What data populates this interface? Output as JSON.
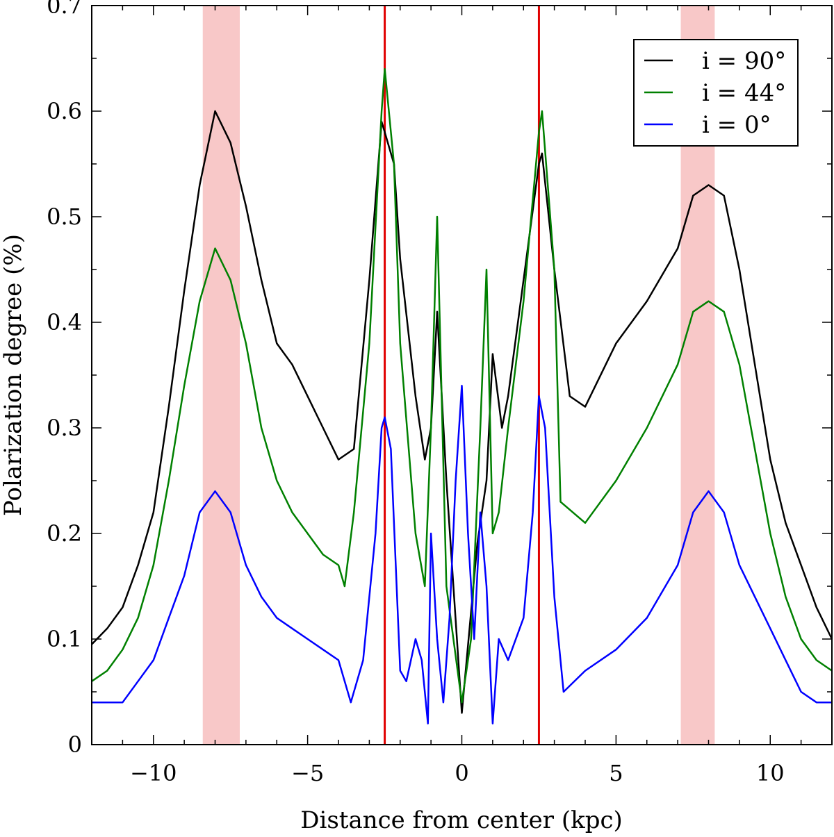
{
  "chart_data": {
    "type": "line",
    "title": "",
    "xlabel": "Distance from center (kpc)",
    "ylabel": "Polarization degree (%)",
    "xlim": [
      -12,
      12
    ],
    "ylim": [
      0,
      0.7
    ],
    "grid": false,
    "legend_position": "top-right",
    "x_ticks": [
      -10,
      -5,
      0,
      5,
      10
    ],
    "x_tick_labels": [
      "−10",
      "−5",
      "0",
      "5",
      "10"
    ],
    "y_ticks": [
      0,
      0.1,
      0.2,
      0.3,
      0.4,
      0.5,
      0.6,
      0.7
    ],
    "y_tick_labels": [
      "0",
      "0.1",
      "0.2",
      "0.3",
      "0.4",
      "0.5",
      "0.6",
      "0.7"
    ],
    "shaded_bands": [
      {
        "x_range": [
          -8.4,
          -7.2
        ],
        "color": "#f8c8c8"
      },
      {
        "x_range": [
          7.1,
          8.2
        ],
        "color": "#f8c8c8"
      }
    ],
    "vertical_lines": [
      {
        "x": -2.5,
        "color": "#e00000"
      },
      {
        "x": 2.5,
        "color": "#e00000"
      }
    ],
    "series": [
      {
        "name": "i = 90°",
        "color": "#000000",
        "x": [
          -12,
          -11.5,
          -11,
          -10.5,
          -10,
          -9.5,
          -9,
          -8.5,
          -8,
          -7.5,
          -7,
          -6.5,
          -6,
          -5.5,
          -5,
          -4.5,
          -4,
          -3.5,
          -3,
          -2.6,
          -2.5,
          -2.2,
          -2,
          -1.5,
          -1.2,
          -1,
          -0.8,
          -0.5,
          0,
          0.5,
          0.8,
          1,
          1.3,
          1.5,
          2,
          2.5,
          2.6,
          3,
          3.5,
          4,
          5,
          6,
          7,
          7.5,
          8,
          8.5,
          9,
          9.5,
          10,
          10.5,
          11,
          11.5,
          12
        ],
        "y": [
          0.095,
          0.11,
          0.13,
          0.17,
          0.22,
          0.32,
          0.43,
          0.53,
          0.6,
          0.57,
          0.51,
          0.44,
          0.38,
          0.36,
          0.33,
          0.3,
          0.27,
          0.28,
          0.44,
          0.59,
          0.58,
          0.55,
          0.46,
          0.33,
          0.27,
          0.3,
          0.41,
          0.25,
          0.03,
          0.19,
          0.25,
          0.37,
          0.3,
          0.33,
          0.44,
          0.55,
          0.56,
          0.45,
          0.33,
          0.32,
          0.38,
          0.42,
          0.47,
          0.52,
          0.53,
          0.52,
          0.45,
          0.36,
          0.27,
          0.21,
          0.17,
          0.13,
          0.1
        ]
      },
      {
        "name": "i = 44°",
        "color": "#008000",
        "x": [
          -12,
          -11.5,
          -11,
          -10.5,
          -10,
          -9.5,
          -9,
          -8.5,
          -8,
          -7.5,
          -7,
          -6.5,
          -6,
          -5.5,
          -5,
          -4.5,
          -4,
          -3.8,
          -3.5,
          -3,
          -2.6,
          -2.5,
          -2.2,
          -2,
          -1.5,
          -1.2,
          -1,
          -0.8,
          -0.5,
          0,
          0.3,
          0.6,
          0.8,
          1,
          1.2,
          1.5,
          2,
          2.5,
          2.6,
          3,
          3.2,
          4,
          5,
          6,
          7,
          7.5,
          8,
          8.5,
          9,
          9.5,
          10,
          10.5,
          11,
          11.5,
          12
        ],
        "y": [
          0.06,
          0.07,
          0.09,
          0.12,
          0.17,
          0.25,
          0.34,
          0.42,
          0.47,
          0.44,
          0.38,
          0.3,
          0.25,
          0.22,
          0.2,
          0.18,
          0.17,
          0.15,
          0.22,
          0.38,
          0.6,
          0.64,
          0.55,
          0.38,
          0.2,
          0.15,
          0.3,
          0.5,
          0.15,
          0.04,
          0.1,
          0.3,
          0.45,
          0.2,
          0.22,
          0.3,
          0.42,
          0.58,
          0.6,
          0.45,
          0.23,
          0.21,
          0.25,
          0.3,
          0.36,
          0.41,
          0.42,
          0.41,
          0.36,
          0.28,
          0.2,
          0.14,
          0.1,
          0.08,
          0.07
        ]
      },
      {
        "name": "i = 0°",
        "color": "#0000ff",
        "x": [
          -12,
          -11.5,
          -11,
          -10.5,
          -10,
          -9.5,
          -9,
          -8.5,
          -8,
          -7.5,
          -7,
          -6.5,
          -6,
          -5.5,
          -5,
          -4.5,
          -4,
          -3.6,
          -3.2,
          -2.8,
          -2.6,
          -2.5,
          -2.3,
          -2,
          -1.8,
          -1.5,
          -1.3,
          -1.1,
          -1,
          -0.8,
          -0.6,
          -0.4,
          -0.2,
          0,
          0.2,
          0.4,
          0.6,
          0.8,
          1,
          1.2,
          1.5,
          2,
          2.3,
          2.5,
          2.7,
          3,
          3.3,
          4,
          5,
          6,
          7,
          7.5,
          8,
          8.5,
          9,
          9.5,
          10,
          10.5,
          11,
          11.5,
          12
        ],
        "y": [
          0.04,
          0.04,
          0.04,
          0.06,
          0.08,
          0.12,
          0.16,
          0.22,
          0.24,
          0.22,
          0.17,
          0.14,
          0.12,
          0.11,
          0.1,
          0.09,
          0.08,
          0.04,
          0.08,
          0.2,
          0.3,
          0.31,
          0.28,
          0.07,
          0.06,
          0.1,
          0.08,
          0.02,
          0.2,
          0.1,
          0.04,
          0.12,
          0.25,
          0.34,
          0.2,
          0.1,
          0.22,
          0.15,
          0.02,
          0.1,
          0.08,
          0.12,
          0.22,
          0.33,
          0.3,
          0.14,
          0.05,
          0.07,
          0.09,
          0.12,
          0.17,
          0.22,
          0.24,
          0.22,
          0.17,
          0.14,
          0.11,
          0.08,
          0.05,
          0.04,
          0.04
        ]
      }
    ]
  }
}
